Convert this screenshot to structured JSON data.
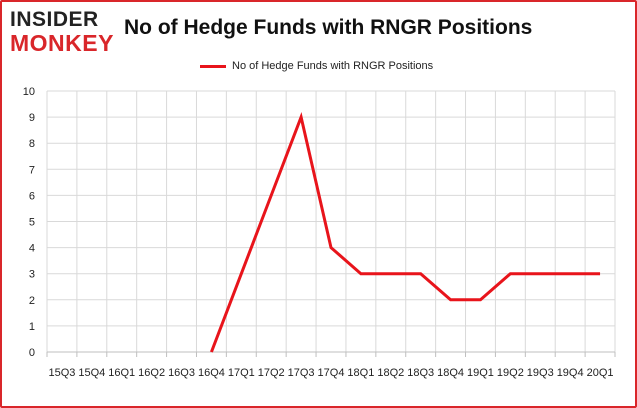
{
  "brand": {
    "line1": "INSIDER",
    "line2": "MONKEY"
  },
  "legend": {
    "label": "No of Hedge Funds with RNGR  Positions"
  },
  "colors": {
    "series": "#e8141b",
    "frame": "#d9262a",
    "grid": "#d9d9d9"
  },
  "chart_data": {
    "type": "line",
    "title": "No of Hedge Funds with RNGR Positions",
    "xlabel": "",
    "ylabel": "",
    "categories": [
      "2015Q3",
      "2015Q4",
      "2016Q1",
      "2016Q2",
      "2016Q3",
      "2016Q4",
      "2017Q1",
      "2017Q2",
      "2017Q3",
      "2017Q4",
      "2018Q1",
      "2018Q2",
      "2018Q3",
      "2018Q4",
      "2019Q1",
      "2019Q2",
      "2019Q3",
      "2019Q4",
      "2020Q1"
    ],
    "tick_labels": [
      "15Q3",
      "15Q4",
      "16Q1",
      "16Q2",
      "16Q3",
      "16Q4",
      "17Q1",
      "17Q2",
      "17Q3",
      "17Q4",
      "18Q1",
      "18Q2",
      "18Q3",
      "18Q4",
      "19Q1",
      "19Q2",
      "19Q3",
      "19Q4",
      "20Q1"
    ],
    "series": [
      {
        "name": "No of Hedge Funds with RNGR  Positions",
        "values": [
          null,
          null,
          null,
          null,
          null,
          0,
          3,
          6,
          9,
          4,
          3,
          3,
          3,
          2,
          2,
          3,
          3,
          3,
          3
        ]
      }
    ],
    "ylim": [
      0,
      10
    ],
    "yticks": [
      0,
      1,
      2,
      3,
      4,
      5,
      6,
      7,
      8,
      9,
      10
    ],
    "grid": true,
    "legend_position": "top"
  }
}
